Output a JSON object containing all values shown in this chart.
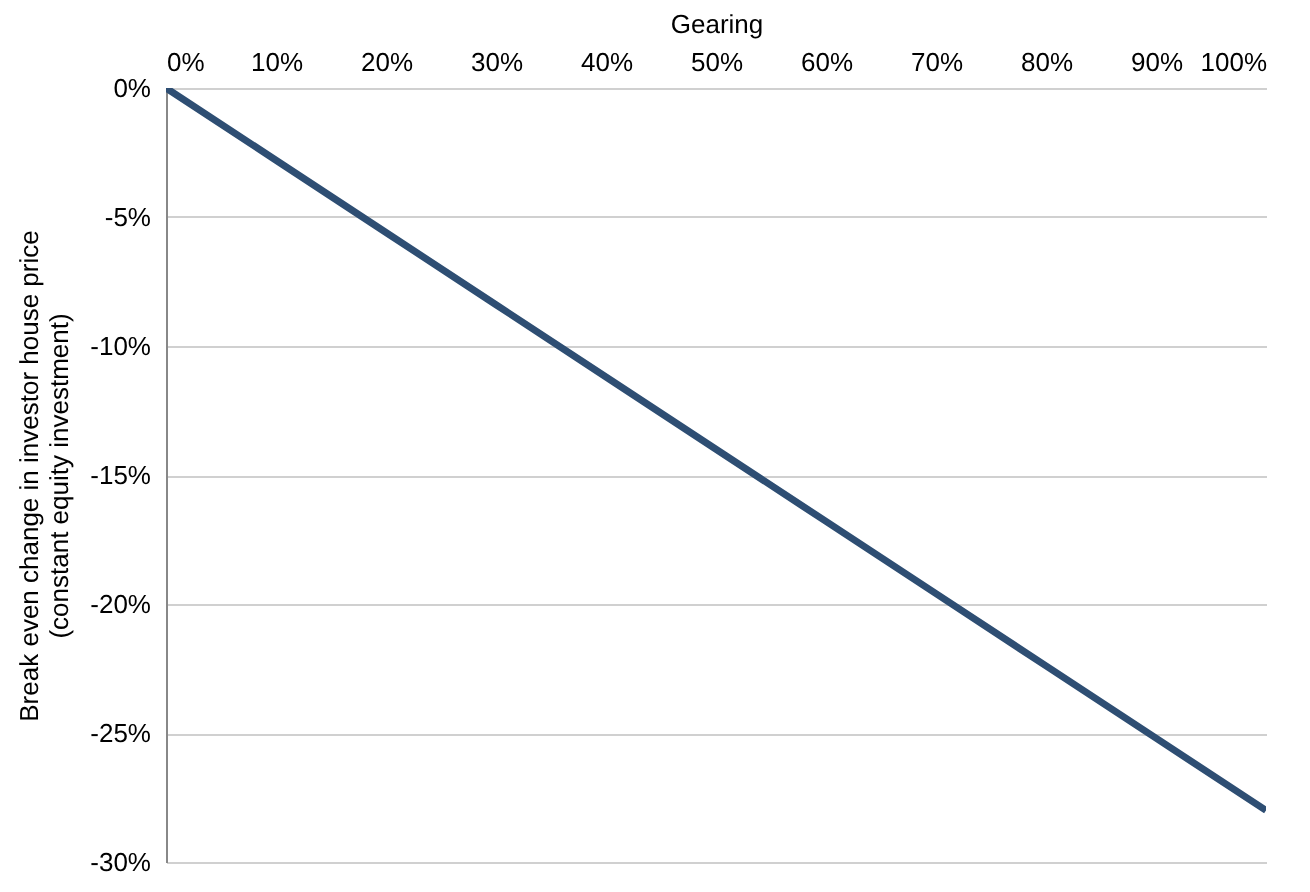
{
  "chart_data": {
    "type": "line",
    "xlabel": "Gearing",
    "ylabel": "Break even change in investor house price\n(constant  equity investment)",
    "x": [
      0,
      10,
      20,
      30,
      40,
      50,
      60,
      70,
      80,
      90,
      100
    ],
    "series": [
      {
        "color": "#2e4e73",
        "values": [
          0,
          -2.8,
          -5.6,
          -8.4,
          -11.2,
          -14,
          -16.8,
          -19.6,
          -22.4,
          -25.2,
          -28
        ]
      }
    ],
    "xlim": [
      0,
      100
    ],
    "xticks": [
      {
        "value": 0,
        "label": "0%"
      },
      {
        "value": 10,
        "label": "10%"
      },
      {
        "value": 20,
        "label": "20%"
      },
      {
        "value": 30,
        "label": "30%"
      },
      {
        "value": 40,
        "label": "40%"
      },
      {
        "value": 50,
        "label": "50%"
      },
      {
        "value": 60,
        "label": "60%"
      },
      {
        "value": 70,
        "label": "70%"
      },
      {
        "value": 80,
        "label": "80%"
      },
      {
        "value": 90,
        "label": "90%"
      },
      {
        "value": 100,
        "label": "100%"
      }
    ],
    "ylim": [
      -30,
      0
    ],
    "yticks": [
      {
        "value": 0,
        "label": "0%"
      },
      {
        "value": -5,
        "label": "-5%"
      },
      {
        "value": -10,
        "label": "-10%"
      },
      {
        "value": -15,
        "label": "-15%"
      },
      {
        "value": -20,
        "label": "-20%"
      },
      {
        "value": -25,
        "label": "-25%"
      },
      {
        "value": -30,
        "label": "-30%"
      }
    ],
    "grid": "y",
    "marker": "none",
    "line_style": "solid"
  }
}
